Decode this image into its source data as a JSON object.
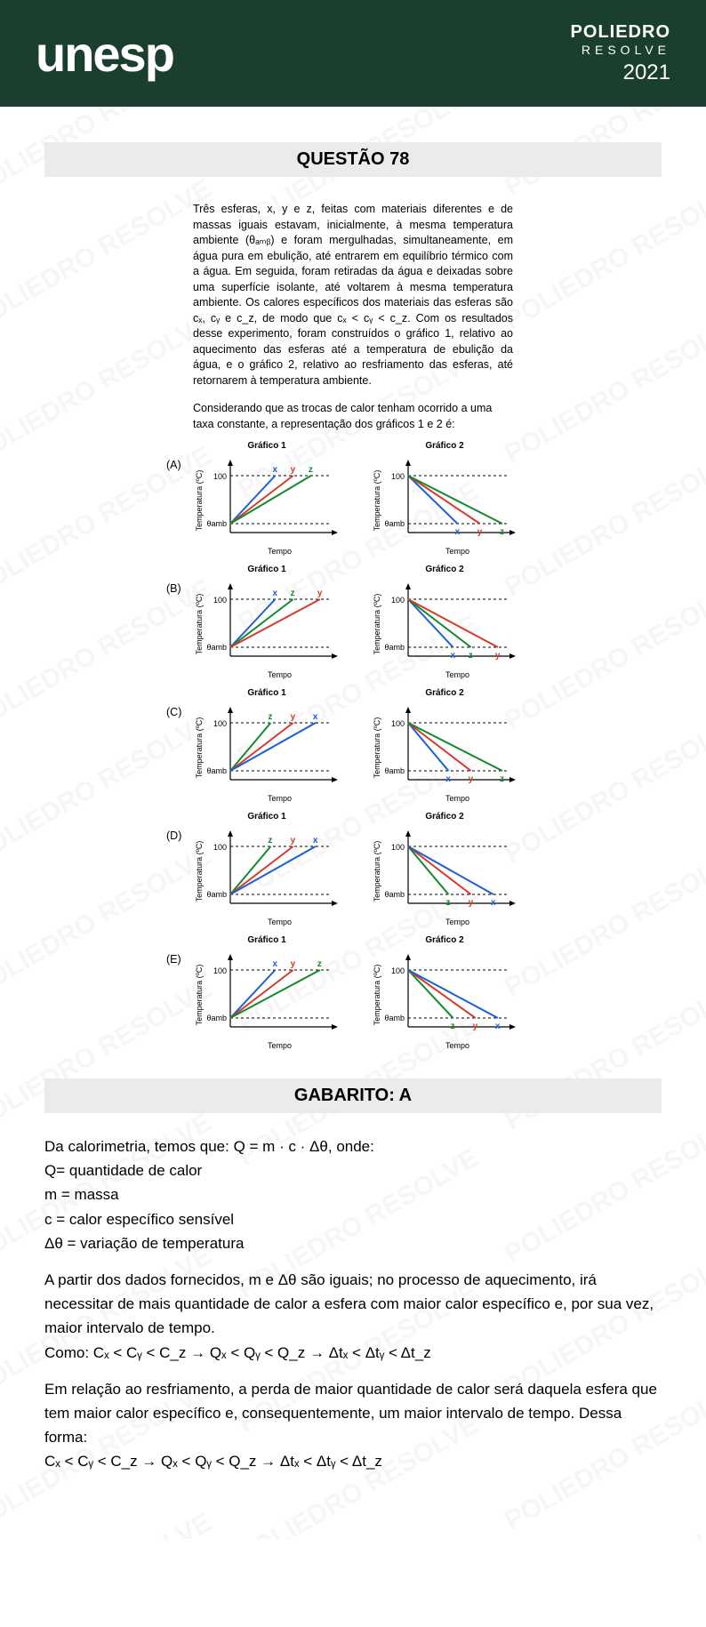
{
  "header": {
    "logo_main": "unesp",
    "right_line1": "POLIEDRO",
    "right_line2": "RESOLVE",
    "right_year": "2021"
  },
  "watermark": "POLIEDRO RESOLVE",
  "question": {
    "title": "QUESTÃO 78",
    "body": "Três esferas, x, y e z, feitas com materiais diferentes e de massas iguais estavam, inicialmente, à mesma temperatura ambiente (θₐₘᵦ) e foram mergulhadas, simultaneamente, em água pura em ebulição, até entrarem em equilíbrio térmico com a água. Em seguida, foram retiradas da água e deixadas sobre uma superfície isolante, até voltarem à mesma temperatura ambiente. Os calores específicos dos materiais das esferas são cₓ, cᵧ e c_z, de modo que cₓ < cᵧ < c_z. Com os resultados desse experimento, foram construídos o gráfico 1, relativo ao aquecimento das esferas até a temperatura de ebulição da água, e o gráfico 2, relativo ao resfriamento das esferas, até retornarem à temperatura ambiente.",
    "sub": "Considerando que as trocas de calor tenham ocorrido a uma taxa constante, a representação dos gráficos 1 e 2 é:"
  },
  "chart_common": {
    "title1": "Gráfico 1",
    "title2": "Gráfico 2",
    "ylabel": "Temperatura (ºC)",
    "xlabel": "Tempo",
    "y_top": "100",
    "y_bottom": "θamb",
    "colors": {
      "x": "#1b5fd6",
      "y": "#d63a2a",
      "z": "#128a2c",
      "axis": "#000000",
      "dash": "#000000"
    },
    "width": 170,
    "height": 120,
    "stroke_width": 2
  },
  "options": [
    {
      "letter": "(A)",
      "heating": {
        "order": [
          "x",
          "y",
          "z"
        ],
        "ends": [
          50,
          70,
          90
        ]
      },
      "cooling": {
        "order": [
          "x",
          "y",
          "z"
        ],
        "ends": [
          55,
          80,
          105
        ]
      }
    },
    {
      "letter": "(B)",
      "heating": {
        "order": [
          "x",
          "z",
          "y"
        ],
        "ends": [
          50,
          70,
          100
        ]
      },
      "cooling": {
        "order": [
          "x",
          "z",
          "y"
        ],
        "ends": [
          50,
          70,
          100
        ]
      }
    },
    {
      "letter": "(C)",
      "heating": {
        "order": [
          "z",
          "y",
          "x"
        ],
        "ends": [
          45,
          70,
          95
        ]
      },
      "cooling": {
        "order": [
          "x",
          "y",
          "z"
        ],
        "ends": [
          45,
          70,
          105
        ]
      }
    },
    {
      "letter": "(D)",
      "heating": {
        "order": [
          "z",
          "y",
          "x"
        ],
        "ends": [
          45,
          70,
          95
        ]
      },
      "cooling": {
        "order": [
          "z",
          "y",
          "x"
        ],
        "ends": [
          45,
          70,
          95
        ]
      }
    },
    {
      "letter": "(E)",
      "heating": {
        "order": [
          "x",
          "y",
          "z"
        ],
        "ends": [
          50,
          70,
          100
        ]
      },
      "cooling": {
        "order": [
          "z",
          "y",
          "x"
        ],
        "ends": [
          50,
          75,
          100
        ]
      }
    }
  ],
  "gabarito": {
    "title": "GABARITO: A"
  },
  "solution": {
    "p1": "Da calorimetria, temos que: Q = m · c · Δθ, onde:",
    "l1": "Q= quantidade de calor",
    "l2": "m = massa",
    "l3": "c = calor específico sensível",
    "l4": "Δθ = variação de temperatura",
    "p2": "A partir dos dados fornecidos, m e Δθ são iguais; no processo de aquecimento, irá necessitar de mais quantidade de calor a esfera com maior calor específico e, por sua vez, maior intervalo de tempo.",
    "p3": "Como: Cₓ < Cᵧ < C_z → Qₓ < Qᵧ < Q_z → Δtₓ < Δtᵧ < Δt_z",
    "p4": "Em relação ao resfriamento, a perda de maior quantidade de calor será daquela esfera que tem maior calor específico e, consequentemente, um maior intervalo de tempo. Dessa forma:",
    "p5": "Cₓ < Cᵧ < C_z → Qₓ < Qᵧ < Q_z → Δtₓ < Δtᵧ < Δt_z"
  }
}
